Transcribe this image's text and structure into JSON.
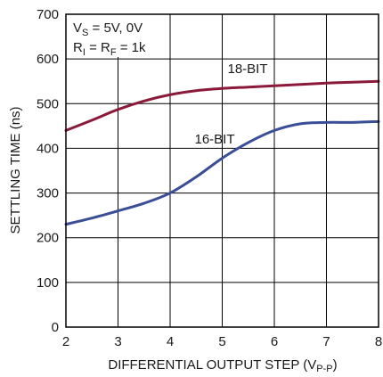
{
  "chart_data": {
    "type": "line",
    "title": "",
    "xlabel": "DIFFERENTIAL OUTPUT STEP (V",
    "xlabel_sub": "P-P",
    "xlabel_close": ")",
    "ylabel": "SETTLING TIME (ns)",
    "xlim": [
      2,
      8
    ],
    "ylim": [
      0,
      700
    ],
    "x_ticks": [
      "2",
      "3",
      "4",
      "5",
      "6",
      "7",
      "8"
    ],
    "y_ticks": [
      "0",
      "100",
      "200",
      "300",
      "400",
      "500",
      "600",
      "700"
    ],
    "grid": true,
    "conditions": {
      "vs_label": "V",
      "vs_sub": "S",
      "vs_value": " = 5V, 0V",
      "r_label1": "R",
      "r_sub1": "I",
      "r_eq": " = R",
      "r_sub2": "F",
      "r_value": " = 1k"
    },
    "series": [
      {
        "name": "18-BIT",
        "color": "#8b1a3a",
        "x": [
          2,
          2.5,
          3,
          3.5,
          4,
          4.5,
          5,
          5.5,
          6,
          6.5,
          7,
          7.5,
          8
        ],
        "y": [
          440,
          463,
          487,
          506,
          520,
          529,
          534,
          537,
          540,
          543,
          546,
          548,
          550
        ]
      },
      {
        "name": "16-BIT",
        "color": "#3a4e96",
        "x": [
          2,
          2.5,
          3,
          3.5,
          4,
          4.5,
          5,
          5.5,
          6,
          6.5,
          7,
          7.5,
          8
        ],
        "y": [
          230,
          244,
          260,
          277,
          300,
          336,
          378,
          413,
          440,
          455,
          458,
          458,
          460
        ]
      }
    ]
  }
}
